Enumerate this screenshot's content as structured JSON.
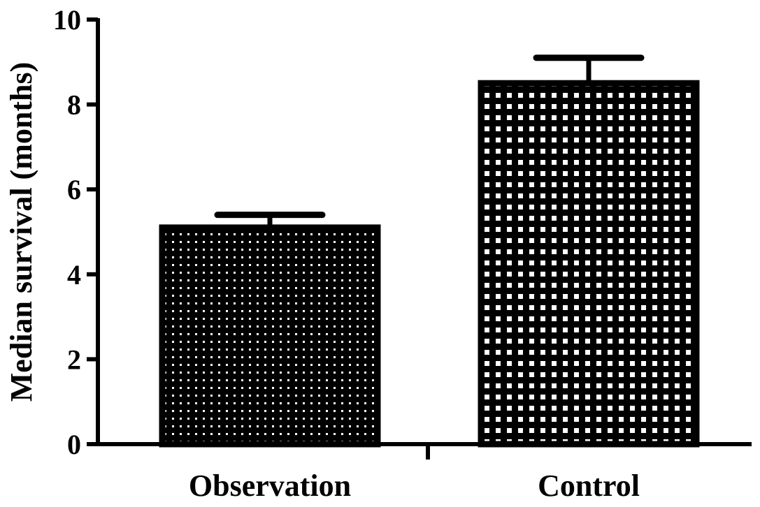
{
  "chart_data": {
    "type": "bar",
    "title": "",
    "xlabel": "",
    "ylabel": "Median survival (months)",
    "ylim": [
      0,
      10
    ],
    "yticks": [
      0,
      2,
      4,
      6,
      8,
      10
    ],
    "grid": false,
    "legend": "none",
    "categories": [
      "Observation",
      "Control"
    ],
    "values": [
      5.1,
      8.5
    ],
    "error_upper": [
      0.3,
      0.6
    ],
    "bar_patterns": [
      "fine-dots",
      "coarse-squares"
    ],
    "colors": {
      "bar_fill": "#000000",
      "pattern_dot": "#ffffff",
      "axis": "#000000",
      "background": "#ffffff"
    }
  }
}
